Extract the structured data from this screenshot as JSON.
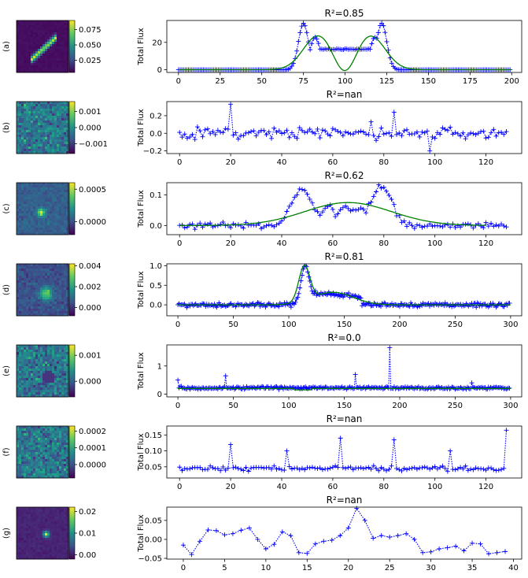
{
  "chart_data": [
    {
      "panel": "(a)",
      "type": "line",
      "title": "R²=0.85",
      "ylabel": "Total Flux",
      "xlim": [
        -7,
        206
      ],
      "ylim": [
        -2,
        36
      ],
      "xticks": [
        0,
        25,
        50,
        75,
        100,
        125,
        150,
        175,
        200
      ],
      "yticks": [
        0,
        20
      ],
      "image": {
        "kind": "streak",
        "cx": 0.53,
        "cy": 0.47,
        "colorbar_ticks": [
          "0.075",
          "0.050",
          "0.025"
        ],
        "colorbar_range": [
          0.005,
          0.09
        ]
      },
      "data_model": {
        "kind": "twinpeak",
        "n": 200,
        "step": 1,
        "base": 0,
        "bumps": [
          [
            75,
            34,
            3
          ],
          [
            122,
            34,
            3
          ]
        ],
        "plateau": [
          [
            80,
            120,
            15
          ]
        ],
        "fall": [
          [
            82,
            24
          ],
          [
            118,
            24
          ]
        ]
      },
      "fit": {
        "kind": "gauss",
        "comps": [
          [
            84,
            25,
            9
          ],
          [
            115,
            25,
            9
          ],
          [
            100,
            -12,
            6
          ]
        ],
        "base": 0
      }
    },
    {
      "panel": "(b)",
      "type": "line",
      "title": "R²=nan",
      "ylabel": "Total Flux",
      "xlim": [
        -5,
        134
      ],
      "ylim": [
        -0.23,
        0.36
      ],
      "xticks": [
        0,
        20,
        40,
        60,
        80,
        100,
        120
      ],
      "yticks": [
        -0.2,
        0.0,
        0.2
      ],
      "ytick_labels": [
        "−0.2",
        "0.0",
        "0.2"
      ],
      "image": {
        "kind": "noise",
        "colorbar_ticks": [
          "0.001",
          "0.000",
          "−0.001"
        ],
        "colorbar_range": [
          -0.0016,
          0.0016
        ]
      },
      "data_model": {
        "kind": "noise",
        "n": 129,
        "step": 1,
        "amp": 0.07,
        "base": 0.0,
        "spikes": [
          [
            20,
            0.33
          ],
          [
            84,
            0.24
          ],
          [
            98,
            -0.2
          ],
          [
            75,
            0.13
          ]
        ]
      },
      "fit": null
    },
    {
      "panel": "(c)",
      "type": "line",
      "title": "R²=0.62",
      "ylabel": "Total Flux",
      "xlim": [
        -5,
        134
      ],
      "ylim": [
        -0.03,
        0.14
      ],
      "xticks": [
        0,
        20,
        40,
        60,
        80,
        100,
        120
      ],
      "yticks": [
        0.0,
        0.1
      ],
      "ytick_labels": [
        "0.0",
        "0.1"
      ],
      "image": {
        "kind": "blob",
        "colorbar_ticks": [
          "0.0005",
          "0.0000"
        ],
        "colorbar_range": [
          -0.0002,
          0.0006
        ]
      },
      "data_model": {
        "kind": "twinpeak2",
        "n": 129,
        "step": 1,
        "amp": 0.012,
        "base": 0.0,
        "bumps": [
          [
            48,
            0.12,
            2
          ],
          [
            79,
            0.13,
            2
          ]
        ],
        "plateau": [
          [
            50,
            77,
            0.05
          ]
        ]
      },
      "fit": {
        "kind": "gauss",
        "comps": [
          [
            66,
            0.075,
            17
          ]
        ],
        "base": 0.0
      }
    },
    {
      "panel": "(d)",
      "type": "line",
      "title": "R²=0.81",
      "ylabel": "Total Flux",
      "xlim": [
        -10,
        310
      ],
      "ylim": [
        -0.28,
        1.05
      ],
      "xticks": [
        0,
        50,
        100,
        150,
        200,
        250,
        300
      ],
      "yticks": [
        0.0,
        0.5,
        1.0
      ],
      "ytick_labels": [
        "0.0",
        "0.5",
        "1.0"
      ],
      "image": {
        "kind": "blob2",
        "colorbar_ticks": [
          "0.004",
          "0.002",
          "0.000"
        ],
        "colorbar_range": [
          -0.0008,
          0.0042
        ]
      },
      "data_model": {
        "kind": "decay",
        "n": 300,
        "step": 1,
        "amp": 0.06,
        "base": 0.0,
        "peak": [
          115,
          1.0,
          4
        ],
        "tail": [
          120,
          165,
          0.3
        ]
      },
      "fit": {
        "kind": "gauss",
        "comps": [
          [
            114,
            0.9,
            5
          ],
          [
            140,
            0.32,
            18
          ]
        ],
        "base": 0.0
      }
    },
    {
      "panel": "(e)",
      "type": "line",
      "title": "R²=0.0",
      "ylabel": "Total Flux",
      "xlim": [
        -10,
        310
      ],
      "ylim": [
        -0.1,
        1.75
      ],
      "xticks": [
        0,
        50,
        100,
        150,
        200,
        250,
        300
      ],
      "yticks": [
        0,
        1
      ],
      "image": {
        "kind": "noise2",
        "colorbar_ticks": [
          "0.001",
          "0.000"
        ],
        "colorbar_range": [
          -0.0006,
          0.0014
        ]
      },
      "data_model": {
        "kind": "noise",
        "n": 300,
        "step": 1,
        "amp": 0.05,
        "base": 0.22,
        "spikes": [
          [
            191,
            1.65
          ],
          [
            43,
            0.65
          ],
          [
            160,
            0.7
          ],
          [
            0,
            0.5
          ],
          [
            265,
            0.4
          ]
        ]
      },
      "fit": {
        "kind": "flat",
        "value": 0.2,
        "dip": [
          [
            105,
            120,
            0.05
          ]
        ]
      }
    },
    {
      "panel": "(f)",
      "type": "line",
      "title": "R²=nan",
      "ylabel": "Total Flux",
      "xlim": [
        -5,
        134
      ],
      "ylim": [
        0.015,
        0.178
      ],
      "xticks": [
        0,
        20,
        40,
        60,
        80,
        100,
        120
      ],
      "yticks": [
        0.05,
        0.1,
        0.15
      ],
      "ytick_labels": [
        "0.05",
        "0.10",
        "0.15"
      ],
      "image": {
        "kind": "fine",
        "colorbar_ticks": [
          "0.0002",
          "0.0001",
          "0.0000"
        ],
        "colorbar_range": [
          -8e-05,
          0.00023
        ]
      },
      "data_model": {
        "kind": "noise",
        "n": 129,
        "step": 1,
        "amp": 0.008,
        "base": 0.045,
        "spikes": [
          [
            20,
            0.12
          ],
          [
            42,
            0.1
          ],
          [
            63,
            0.14
          ],
          [
            84,
            0.135
          ],
          [
            106,
            0.1
          ],
          [
            128,
            0.165
          ]
        ]
      },
      "fit": null
    },
    {
      "panel": "(g)",
      "type": "line",
      "title": "R²=nan",
      "ylabel": "Total Flux",
      "xlim": [
        -2,
        41
      ],
      "ylim": [
        -0.052,
        0.085
      ],
      "xticks": [
        0,
        5,
        10,
        15,
        20,
        25,
        30,
        35,
        40
      ],
      "yticks": [
        -0.05,
        0.0,
        0.05
      ],
      "ytick_labels": [
        "−0.05",
        "0.00",
        "0.05"
      ],
      "image": {
        "kind": "spot",
        "colorbar_ticks": [
          "0.02",
          "0.01",
          "0.00"
        ],
        "colorbar_range": [
          -0.002,
          0.022
        ]
      },
      "x": [
        0,
        1,
        2,
        3,
        4,
        5,
        6,
        7,
        8,
        9,
        10,
        11,
        12,
        13,
        14,
        15,
        16,
        17,
        18,
        19,
        20,
        21,
        22,
        23,
        24,
        25,
        26,
        27,
        28,
        29,
        30,
        31,
        32,
        33,
        34,
        35,
        36,
        37,
        38,
        39
      ],
      "y": [
        -0.015,
        -0.04,
        -0.005,
        0.025,
        0.023,
        0.012,
        0.015,
        0.024,
        0.03,
        0.0,
        -0.025,
        -0.013,
        0.02,
        0.01,
        -0.035,
        -0.037,
        -0.012,
        -0.005,
        -0.002,
        0.01,
        0.03,
        0.082,
        0.05,
        0.003,
        0.01,
        0.006,
        0.01,
        0.015,
        0.0,
        -0.035,
        -0.033,
        -0.025,
        -0.022,
        -0.018,
        -0.03,
        -0.01,
        -0.012,
        -0.038,
        -0.035,
        -0.032
      ],
      "fit": null
    }
  ]
}
